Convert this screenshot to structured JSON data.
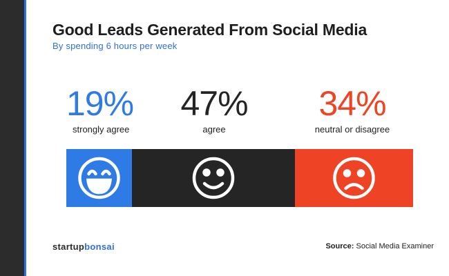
{
  "header": {
    "title": "Good Leads Generated From Social Media",
    "subtitle": "By spending 6 hours per week"
  },
  "chart_data": {
    "type": "bar",
    "orientation": "horizontal-stacked",
    "categories": [
      "strongly agree",
      "agree",
      "neutral or disagree"
    ],
    "values": [
      19,
      47,
      34
    ],
    "value_labels": [
      "19%",
      "47%",
      "34%"
    ],
    "unit": "%",
    "colors": [
      "#2f7be6",
      "#252525",
      "#ee4324"
    ],
    "icons": [
      "laughing-face-icon",
      "smiling-face-icon",
      "frowning-face-icon"
    ],
    "total": 100
  },
  "footer": {
    "brand_part1": "startup",
    "brand_part2": "bonsai",
    "source_label": "Source",
    "source_sep": ":",
    "source_value": " Social Media Examiner"
  }
}
